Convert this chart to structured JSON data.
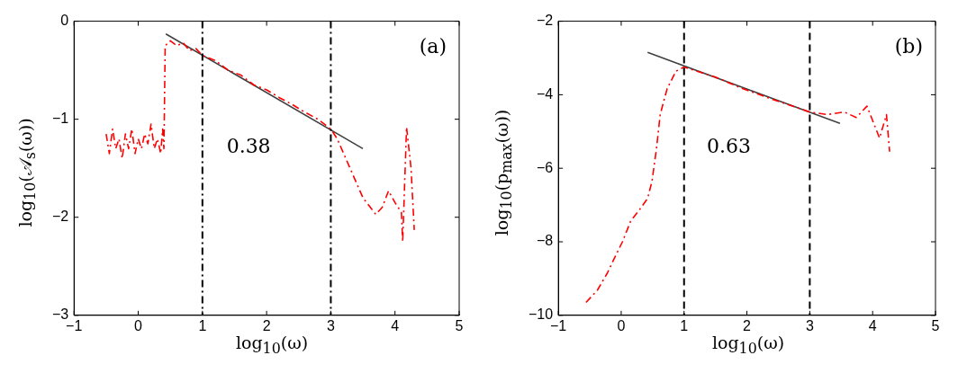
{
  "chart_data": [
    {
      "type": "line",
      "xlabel": "log$_{10}$(ω)",
      "ylabel": "log$_{10}$(𝒜$_{s}$(ω))",
      "xlim": [
        -1,
        5
      ],
      "ylim": [
        -3,
        0
      ],
      "xticks": [
        -1,
        0,
        1,
        2,
        3,
        4,
        5
      ],
      "yticks": [
        -3,
        -2,
        -1,
        0
      ],
      "series": [
        {
          "color": "#ff0000",
          "line_style": "dashdot",
          "x": [
            -0.5,
            -0.45,
            -0.4,
            -0.35,
            -0.3,
            -0.25,
            -0.2,
            -0.15,
            -0.1,
            -0.05,
            0,
            0.05,
            0.1,
            0.15,
            0.2,
            0.25,
            0.3,
            0.35,
            0.38,
            0.4,
            0.42,
            0.5,
            0.6,
            0.7,
            0.8,
            0.9,
            1,
            1.2,
            1.4,
            1.6,
            1.8,
            2,
            2.2,
            2.4,
            2.6,
            2.8,
            3,
            3.1,
            3.3,
            3.5,
            3.7,
            3.8,
            3.9,
            4,
            4.1,
            4.12,
            4.18,
            4.25,
            4.3
          ],
          "values": [
            -1.15,
            -1.35,
            -1.1,
            -1.3,
            -1.2,
            -1.4,
            -1.15,
            -1.3,
            -1.1,
            -1.35,
            -1.2,
            -1.3,
            -1.15,
            -1.25,
            -1.05,
            -1.3,
            -1.2,
            -1.35,
            -1.1,
            -1.3,
            -0.25,
            -0.2,
            -0.25,
            -0.22,
            -0.3,
            -0.28,
            -0.35,
            -0.4,
            -0.5,
            -0.55,
            -0.65,
            -0.7,
            -0.78,
            -0.85,
            -0.93,
            -1,
            -1.1,
            -1.2,
            -1.5,
            -1.8,
            -1.97,
            -1.9,
            -1.73,
            -1.85,
            -1.95,
            -2.25,
            -1.08,
            -1.5,
            -2.13
          ]
        },
        {
          "color": "#404040",
          "line_style": "solid",
          "x": [
            0.43,
            3.5
          ],
          "values": [
            -0.13,
            -1.3
          ]
        }
      ],
      "ref_lines": [
        {
          "axis": "x",
          "value": 1,
          "color": "#000000",
          "line_style": "dashdot"
        },
        {
          "axis": "x",
          "value": 3,
          "color": "#000000",
          "line_style": "dashdot"
        }
      ],
      "annotations": [
        "0.38",
        "(a)"
      ]
    },
    {
      "type": "line",
      "xlabel": "log$_{10}$(ω)",
      "ylabel": "log$_{10}$(p$_{max}$(ω))",
      "xlim": [
        -1,
        5
      ],
      "ylim": [
        -10,
        -2
      ],
      "xticks": [
        -1,
        0,
        1,
        2,
        3,
        4,
        5
      ],
      "yticks": [
        -10,
        -8,
        -6,
        -4,
        -2
      ],
      "series": [
        {
          "color": "#ff0000",
          "line_style": "dashdot",
          "x": [
            -0.56,
            -0.38,
            -0.22,
            -0.09,
            0.02,
            0.15,
            0.29,
            0.42,
            0.49,
            0.56,
            0.62,
            0.73,
            0.87,
            1,
            1.5,
            1.94,
            2.4,
            3,
            3.28,
            3.55,
            3.74,
            3.91,
            4.11,
            4.22,
            4.27
          ],
          "values": [
            -9.65,
            -9.32,
            -8.85,
            -8.38,
            -8,
            -7.44,
            -7.13,
            -6.82,
            -6.35,
            -5.48,
            -4.54,
            -3.84,
            -3.36,
            -3.25,
            -3.52,
            -3.84,
            -4.12,
            -4.47,
            -4.54,
            -4.47,
            -4.62,
            -4.31,
            -5.18,
            -4.54,
            -5.55
          ]
        },
        {
          "color": "#404040",
          "line_style": "solid",
          "x": [
            0.42,
            3.48
          ],
          "values": [
            -2.85,
            -4.78
          ]
        }
      ],
      "ref_lines": [
        {
          "axis": "x",
          "value": 1,
          "color": "#000000",
          "line_style": "dashed"
        },
        {
          "axis": "x",
          "value": 3,
          "color": "#000000",
          "line_style": "dashed"
        }
      ],
      "annotations": [
        "0.63",
        "(b)"
      ]
    }
  ]
}
